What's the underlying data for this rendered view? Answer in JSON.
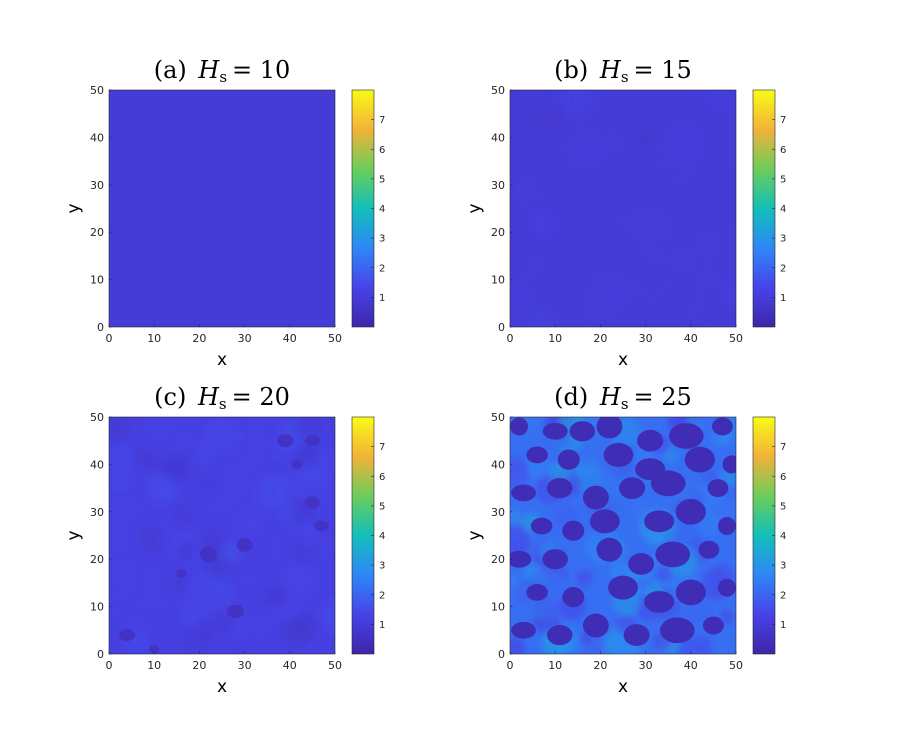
{
  "colorscale": [
    "#3e26a8",
    "#4743e8",
    "#2e87f7",
    "#12bfb9",
    "#6ccd5a",
    "#f2b239",
    "#f9fb15"
  ],
  "chart_data": [
    {
      "type": "heatmap",
      "panel": "a",
      "title_label": "(a)",
      "title_var": "H",
      "title_sub": "s",
      "title_value": "= 10",
      "xlabel": "x",
      "ylabel": "y",
      "xlim": [
        0,
        50
      ],
      "ylim": [
        0,
        50
      ],
      "xticks": [
        "0",
        "10",
        "20",
        "30",
        "40",
        "50"
      ],
      "yticks": [
        "0",
        "10",
        "20",
        "30",
        "40",
        "50"
      ],
      "colorbar": {
        "ticks": [
          "1",
          "2",
          "3",
          "4",
          "5",
          "6",
          "7"
        ],
        "range": [
          0,
          8
        ]
      },
      "field": {
        "base_value": 1.0,
        "pattern": "uniform"
      }
    },
    {
      "type": "heatmap",
      "panel": "b",
      "title_label": "(b)",
      "title_var": "H",
      "title_sub": "s",
      "title_value": "= 15",
      "xlabel": "x",
      "ylabel": "y",
      "xlim": [
        0,
        50
      ],
      "ylim": [
        0,
        50
      ],
      "xticks": [
        "0",
        "10",
        "20",
        "30",
        "40",
        "50"
      ],
      "yticks": [
        "0",
        "10",
        "20",
        "30",
        "40",
        "50"
      ],
      "colorbar": {
        "ticks": [
          "1",
          "2",
          "3",
          "4",
          "5",
          "6",
          "7"
        ],
        "range": [
          0,
          8
        ]
      },
      "field": {
        "base_value": 1.0,
        "pattern": "near-uniform with faint fluctuations"
      }
    },
    {
      "type": "heatmap",
      "panel": "c",
      "title_label": "(c)",
      "title_var": "H",
      "title_sub": "s",
      "title_value": "= 20",
      "xlabel": "x",
      "ylabel": "y",
      "xlim": [
        0,
        50
      ],
      "ylim": [
        0,
        50
      ],
      "xticks": [
        "0",
        "10",
        "20",
        "30",
        "40",
        "50"
      ],
      "yticks": [
        "0",
        "10",
        "20",
        "30",
        "40",
        "50"
      ],
      "colorbar": {
        "ticks": [
          "1",
          "2",
          "3",
          "4",
          "5",
          "6",
          "7"
        ],
        "range": [
          0,
          8
        ]
      },
      "field": {
        "base_value": 1.2,
        "pattern": "weak modulation with a few low-value spots",
        "low_spots": [
          [
            41.5,
            40
          ],
          [
            45,
            45
          ],
          [
            39,
            45
          ],
          [
            22,
            21
          ],
          [
            10,
            1
          ],
          [
            47,
            27
          ],
          [
            30,
            23
          ],
          [
            28,
            9
          ],
          [
            16,
            17
          ],
          [
            45,
            32
          ],
          [
            4,
            4
          ]
        ]
      }
    },
    {
      "type": "heatmap",
      "panel": "d",
      "title_label": "(d)",
      "title_var": "H",
      "title_sub": "s",
      "title_value": "= 25",
      "xlabel": "x",
      "ylabel": "y",
      "xlim": [
        0,
        50
      ],
      "ylim": [
        0,
        50
      ],
      "xticks": [
        "0",
        "10",
        "20",
        "30",
        "40",
        "50"
      ],
      "yticks": [
        "0",
        "10",
        "20",
        "30",
        "40",
        "50"
      ],
      "colorbar": {
        "ticks": [
          "1",
          "2",
          "3",
          "4",
          "5",
          "6",
          "7"
        ],
        "range": [
          0,
          8
        ]
      },
      "field": {
        "base_value": 2.2,
        "pattern": "cellular: low-value holes separated by higher-value ridges",
        "low_spots": [
          [
            2,
            48
          ],
          [
            10,
            47
          ],
          [
            16,
            47
          ],
          [
            22,
            48
          ],
          [
            31,
            45
          ],
          [
            39,
            46
          ],
          [
            47,
            48
          ],
          [
            6,
            42
          ],
          [
            13,
            41
          ],
          [
            24,
            42
          ],
          [
            31,
            39
          ],
          [
            42,
            41
          ],
          [
            49,
            40
          ],
          [
            3,
            34
          ],
          [
            11,
            35
          ],
          [
            19,
            33
          ],
          [
            27,
            35
          ],
          [
            35,
            36
          ],
          [
            46,
            35
          ],
          [
            7,
            27
          ],
          [
            14,
            26
          ],
          [
            21,
            28
          ],
          [
            33,
            28
          ],
          [
            40,
            30
          ],
          [
            48,
            27
          ],
          [
            2,
            20
          ],
          [
            10,
            20
          ],
          [
            22,
            22
          ],
          [
            29,
            19
          ],
          [
            36,
            21
          ],
          [
            44,
            22
          ],
          [
            6,
            13
          ],
          [
            14,
            12
          ],
          [
            25,
            14
          ],
          [
            33,
            11
          ],
          [
            40,
            13
          ],
          [
            48,
            14
          ],
          [
            3,
            5
          ],
          [
            11,
            4
          ],
          [
            19,
            6
          ],
          [
            28,
            4
          ],
          [
            37,
            5
          ],
          [
            45,
            6
          ]
        ]
      }
    }
  ]
}
